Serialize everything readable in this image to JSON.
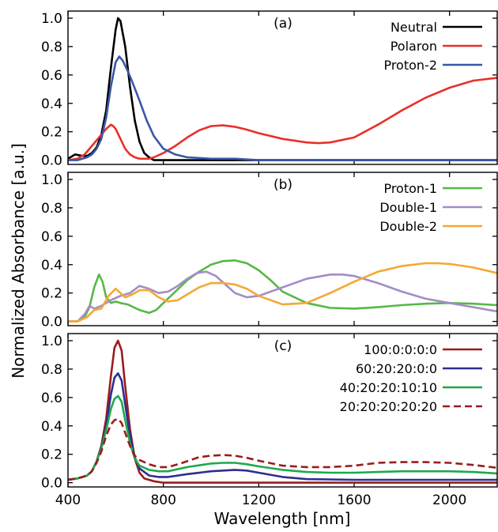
{
  "chart_data": {
    "type": "line",
    "xlabel": "Wavelength [nm]",
    "ylabel": "Normalized Absorbance [a.u.]",
    "xlim": [
      400,
      2200
    ],
    "ylim": [
      -0.03,
      1.05
    ],
    "x_ticks": [
      400,
      800,
      1200,
      1600,
      2000
    ],
    "y_ticks": [
      0.0,
      0.2,
      0.4,
      0.6,
      0.8,
      1.0
    ],
    "legend_location": "top-right",
    "panels": [
      {
        "label": "(a)",
        "series": [
          {
            "name": "Neutral",
            "color": "#000000",
            "dash": false,
            "x": [
              400,
              430,
              460,
              480,
              500,
              520,
              540,
              560,
              580,
              600,
              610,
              620,
              640,
              660,
              680,
              700,
              720,
              740,
              760,
              800,
              900,
              1000,
              1200,
              1400,
              1600,
              1800,
              2000,
              2200
            ],
            "y": [
              0.01,
              0.04,
              0.03,
              0.03,
              0.05,
              0.09,
              0.18,
              0.35,
              0.65,
              0.92,
              1.0,
              0.98,
              0.8,
              0.52,
              0.28,
              0.13,
              0.05,
              0.02,
              0.0,
              0.0,
              0.0,
              0.0,
              0.0,
              0.0,
              0.0,
              0.0,
              0.0,
              0.0
            ]
          },
          {
            "name": "Polaron",
            "color": "#e8302a",
            "dash": false,
            "x": [
              400,
              440,
              470,
              500,
              530,
              560,
              580,
              590,
              600,
              620,
              640,
              660,
              680,
              700,
              720,
              740,
              760,
              800,
              850,
              900,
              950,
              1000,
              1050,
              1100,
              1150,
              1200,
              1300,
              1400,
              1450,
              1500,
              1600,
              1700,
              1800,
              1900,
              2000,
              2100,
              2200
            ],
            "y": [
              0.0,
              0.01,
              0.04,
              0.1,
              0.16,
              0.22,
              0.25,
              0.24,
              0.22,
              0.15,
              0.08,
              0.04,
              0.02,
              0.01,
              0.01,
              0.01,
              0.02,
              0.05,
              0.1,
              0.16,
              0.21,
              0.24,
              0.245,
              0.235,
              0.215,
              0.19,
              0.15,
              0.125,
              0.12,
              0.125,
              0.16,
              0.25,
              0.35,
              0.44,
              0.51,
              0.56,
              0.58
            ]
          },
          {
            "name": "Proton-2",
            "color": "#3a56a8",
            "dash": false,
            "x": [
              400,
              440,
              480,
              500,
              520,
              540,
              560,
              580,
              600,
              615,
              630,
              650,
              670,
              700,
              730,
              760,
              800,
              850,
              900,
              1000,
              1100,
              1200,
              1400,
              1600,
              2000,
              2200
            ],
            "y": [
              0.0,
              0.0,
              0.02,
              0.04,
              0.08,
              0.15,
              0.3,
              0.52,
              0.69,
              0.73,
              0.7,
              0.63,
              0.55,
              0.42,
              0.28,
              0.17,
              0.08,
              0.04,
              0.02,
              0.01,
              0.01,
              0.0,
              0.0,
              0.0,
              0.0,
              0.0
            ]
          }
        ]
      },
      {
        "label": "(b)",
        "series": [
          {
            "name": "Proton-1",
            "color": "#56b846",
            "dash": false,
            "x": [
              400,
              440,
              470,
              490,
              510,
              530,
              545,
              560,
              580,
              600,
              620,
              650,
              700,
              740,
              770,
              800,
              850,
              900,
              950,
              1000,
              1050,
              1100,
              1150,
              1200,
              1250,
              1300,
              1400,
              1500,
              1600,
              1700,
              1800,
              1900,
              2000,
              2100,
              2200
            ],
            "y": [
              0.0,
              0.0,
              0.03,
              0.1,
              0.24,
              0.33,
              0.28,
              0.17,
              0.13,
              0.14,
              0.13,
              0.12,
              0.08,
              0.06,
              0.08,
              0.13,
              0.21,
              0.29,
              0.35,
              0.4,
              0.425,
              0.43,
              0.41,
              0.36,
              0.29,
              0.21,
              0.13,
              0.095,
              0.09,
              0.1,
              0.115,
              0.125,
              0.13,
              0.125,
              0.115
            ]
          },
          {
            "name": "Double-1",
            "color": "#a48cc8",
            "dash": false,
            "x": [
              400,
              440,
              470,
              490,
              510,
              540,
              580,
              620,
              660,
              700,
              740,
              780,
              820,
              860,
              900,
              940,
              980,
              1020,
              1060,
              1100,
              1150,
              1200,
              1300,
              1400,
              1500,
              1550,
              1600,
              1700,
              1800,
              1900,
              2000,
              2100,
              2200
            ],
            "y": [
              0.0,
              0.0,
              0.05,
              0.11,
              0.09,
              0.11,
              0.15,
              0.18,
              0.2,
              0.25,
              0.23,
              0.2,
              0.21,
              0.25,
              0.3,
              0.34,
              0.35,
              0.32,
              0.26,
              0.2,
              0.17,
              0.18,
              0.24,
              0.3,
              0.33,
              0.33,
              0.32,
              0.27,
              0.21,
              0.16,
              0.13,
              0.1,
              0.07
            ]
          },
          {
            "name": "Double-2",
            "color": "#f5a833",
            "dash": false,
            "x": [
              400,
              440,
              480,
              510,
              540,
              570,
              600,
              620,
              640,
              670,
              700,
              740,
              780,
              820,
              860,
              900,
              950,
              1000,
              1050,
              1100,
              1150,
              1200,
              1300,
              1400,
              1500,
              1600,
              1700,
              1800,
              1900,
              1950,
              2000,
              2100,
              2200
            ],
            "y": [
              0.0,
              0.0,
              0.03,
              0.08,
              0.09,
              0.18,
              0.23,
              0.2,
              0.17,
              0.19,
              0.22,
              0.22,
              0.17,
              0.14,
              0.15,
              0.19,
              0.24,
              0.27,
              0.27,
              0.26,
              0.23,
              0.18,
              0.12,
              0.13,
              0.2,
              0.28,
              0.35,
              0.39,
              0.41,
              0.41,
              0.405,
              0.38,
              0.34
            ]
          }
        ]
      },
      {
        "label": "(c)",
        "series": [
          {
            "name": "100:0:0:0:0",
            "color": "#9b1c1c",
            "dash": false,
            "x": [
              400,
              440,
              480,
              500,
              520,
              540,
              560,
              580,
              595,
              610,
              625,
              640,
              660,
              680,
              700,
              720,
              760,
              800,
              900,
              1000,
              1200,
              1400,
              1600,
              1800,
              2000,
              2200
            ],
            "y": [
              0.02,
              0.03,
              0.05,
              0.08,
              0.15,
              0.26,
              0.45,
              0.75,
              0.95,
              1.0,
              0.93,
              0.68,
              0.38,
              0.17,
              0.07,
              0.03,
              0.01,
              0.0,
              0.0,
              0.0,
              0.0,
              0.0,
              0.0,
              0.0,
              0.0,
              0.0
            ]
          },
          {
            "name": "60:20:20:0:0",
            "color": "#2d2f8e",
            "dash": false,
            "x": [
              400,
              440,
              480,
              500,
              520,
              540,
              560,
              580,
              595,
              610,
              625,
              640,
              660,
              680,
              700,
              740,
              780,
              820,
              900,
              1000,
              1100,
              1150,
              1200,
              1300,
              1400,
              1600,
              1800,
              2000,
              2200
            ],
            "y": [
              0.02,
              0.03,
              0.05,
              0.08,
              0.15,
              0.25,
              0.4,
              0.62,
              0.74,
              0.77,
              0.72,
              0.55,
              0.33,
              0.18,
              0.1,
              0.05,
              0.04,
              0.04,
              0.06,
              0.08,
              0.09,
              0.085,
              0.07,
              0.04,
              0.025,
              0.02,
              0.02,
              0.02,
              0.02
            ]
          },
          {
            "name": "40:20:20:10:10",
            "color": "#1fa84d",
            "dash": false,
            "x": [
              400,
              440,
              480,
              500,
              520,
              540,
              560,
              580,
              595,
              610,
              625,
              640,
              660,
              680,
              700,
              740,
              780,
              820,
              900,
              1000,
              1050,
              1100,
              1150,
              1200,
              1300,
              1400,
              1500,
              1600,
              1700,
              1800,
              1900,
              2000,
              2100,
              2200
            ],
            "y": [
              0.02,
              0.03,
              0.05,
              0.08,
              0.15,
              0.24,
              0.37,
              0.52,
              0.59,
              0.61,
              0.57,
              0.44,
              0.28,
              0.17,
              0.12,
              0.09,
              0.08,
              0.08,
              0.11,
              0.135,
              0.14,
              0.14,
              0.13,
              0.115,
              0.09,
              0.075,
              0.07,
              0.07,
              0.075,
              0.08,
              0.08,
              0.08,
              0.075,
              0.065
            ]
          },
          {
            "name": "20:20:20:20:20",
            "color": "#9b1c1c",
            "dash": true,
            "x": [
              400,
              440,
              480,
              500,
              520,
              540,
              560,
              580,
              595,
              610,
              625,
              640,
              660,
              680,
              700,
              740,
              780,
              820,
              880,
              950,
              1000,
              1050,
              1100,
              1150,
              1200,
              1300,
              1400,
              1500,
              1600,
              1700,
              1800,
              1900,
              2000,
              2100,
              2200
            ],
            "y": [
              0.02,
              0.03,
              0.05,
              0.08,
              0.14,
              0.22,
              0.33,
              0.41,
              0.44,
              0.45,
              0.42,
              0.35,
              0.26,
              0.19,
              0.16,
              0.13,
              0.11,
              0.11,
              0.14,
              0.18,
              0.19,
              0.195,
              0.19,
              0.175,
              0.155,
              0.12,
              0.11,
              0.11,
              0.12,
              0.14,
              0.145,
              0.145,
              0.14,
              0.125,
              0.105
            ]
          }
        ]
      }
    ]
  }
}
